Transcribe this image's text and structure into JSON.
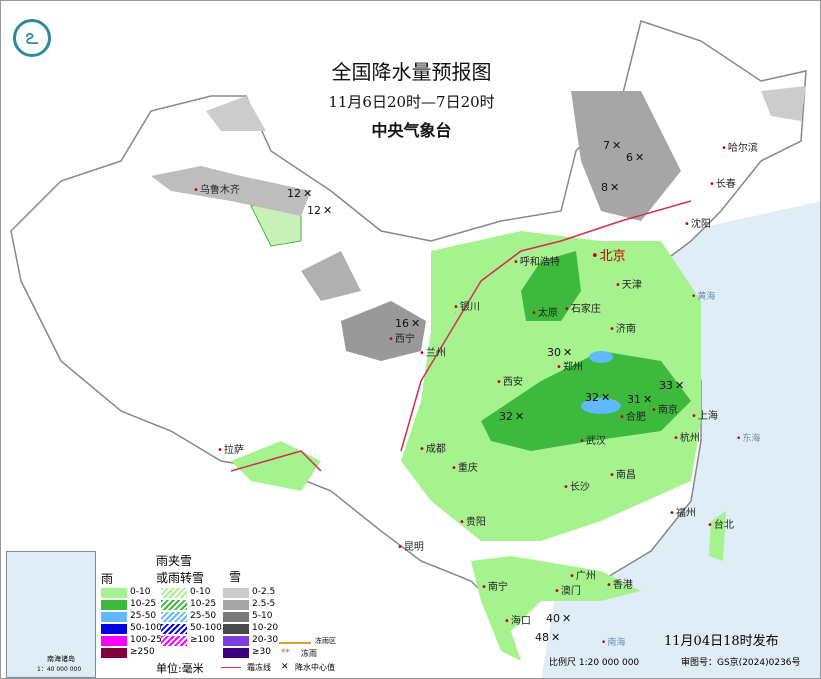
{
  "header": {
    "title": "全国降水量预报图",
    "period": "11月6日20时—7日20时",
    "agency": "中央气象台",
    "logo_icon": "cma-logo-icon"
  },
  "cities": [
    "哈尔滨",
    "长春",
    "沈阳",
    "北京",
    "天津",
    "呼和浩特",
    "石家庄",
    "太原",
    "济南",
    "银川",
    "兰州",
    "西宁",
    "郑州",
    "西安",
    "南京",
    "合肥",
    "上海",
    "武汉",
    "杭州",
    "成都",
    "重庆",
    "长沙",
    "南昌",
    "福州",
    "台北",
    "贵阳",
    "昆明",
    "南宁",
    "广州",
    "澳门",
    "香港",
    "海口",
    "拉萨",
    "乌鲁木齐"
  ],
  "seas": [
    "黄海",
    "东海",
    "南海"
  ],
  "center_values": [
    "12",
    "12",
    "7",
    "6",
    "8",
    "16",
    "30",
    "32",
    "31",
    "33",
    "32",
    "40",
    "48"
  ],
  "legend": {
    "rain": {
      "title": "雨",
      "items": [
        {
          "label": "0-10",
          "color": "#a6f28f"
        },
        {
          "label": "10-25",
          "color": "#3dba3d"
        },
        {
          "label": "25-50",
          "color": "#61b8ff"
        },
        {
          "label": "50-100",
          "color": "#0000e1"
        },
        {
          "label": "100-250",
          "color": "#fa00fa"
        },
        {
          "label": "≥250",
          "color": "#800040"
        }
      ]
    },
    "mixed": {
      "title_line1": "雨夹雪",
      "title_line2": "或雨转雪",
      "items": [
        {
          "label": "0-10",
          "color": "#a6f28f"
        },
        {
          "label": "10-25",
          "color": "#3dba3d"
        },
        {
          "label": "25-50",
          "color": "#61b8ff"
        },
        {
          "label": "50-100",
          "color": "#0000e1"
        },
        {
          "label": "≥100",
          "color": "#fa00fa"
        }
      ]
    },
    "snow": {
      "title": "雪",
      "items": [
        {
          "label": "0-2.5",
          "color": "#cccccc"
        },
        {
          "label": "2.5-5",
          "color": "#a6a6a6"
        },
        {
          "label": "5-10",
          "color": "#787878"
        },
        {
          "label": "10-20",
          "color": "#4a4a4a"
        },
        {
          "label": "20-30",
          "color": "#7a3fdc"
        },
        {
          "label": "≥30",
          "color": "#3d0080"
        }
      ]
    },
    "unit": "单位:毫米",
    "freezing_rain_area": "冻雨区",
    "freezing_rain": "冻雨",
    "freeze_line": "霜冻线",
    "center": "降水中心值",
    "inset_title": "南海诸岛",
    "inset_scale": "1：40 000 000"
  },
  "footer": {
    "issued": "11月04日18时发布",
    "scale": "比例尺 1:20 000 000",
    "review_no": "审图号：GS京(2024)0236号"
  }
}
